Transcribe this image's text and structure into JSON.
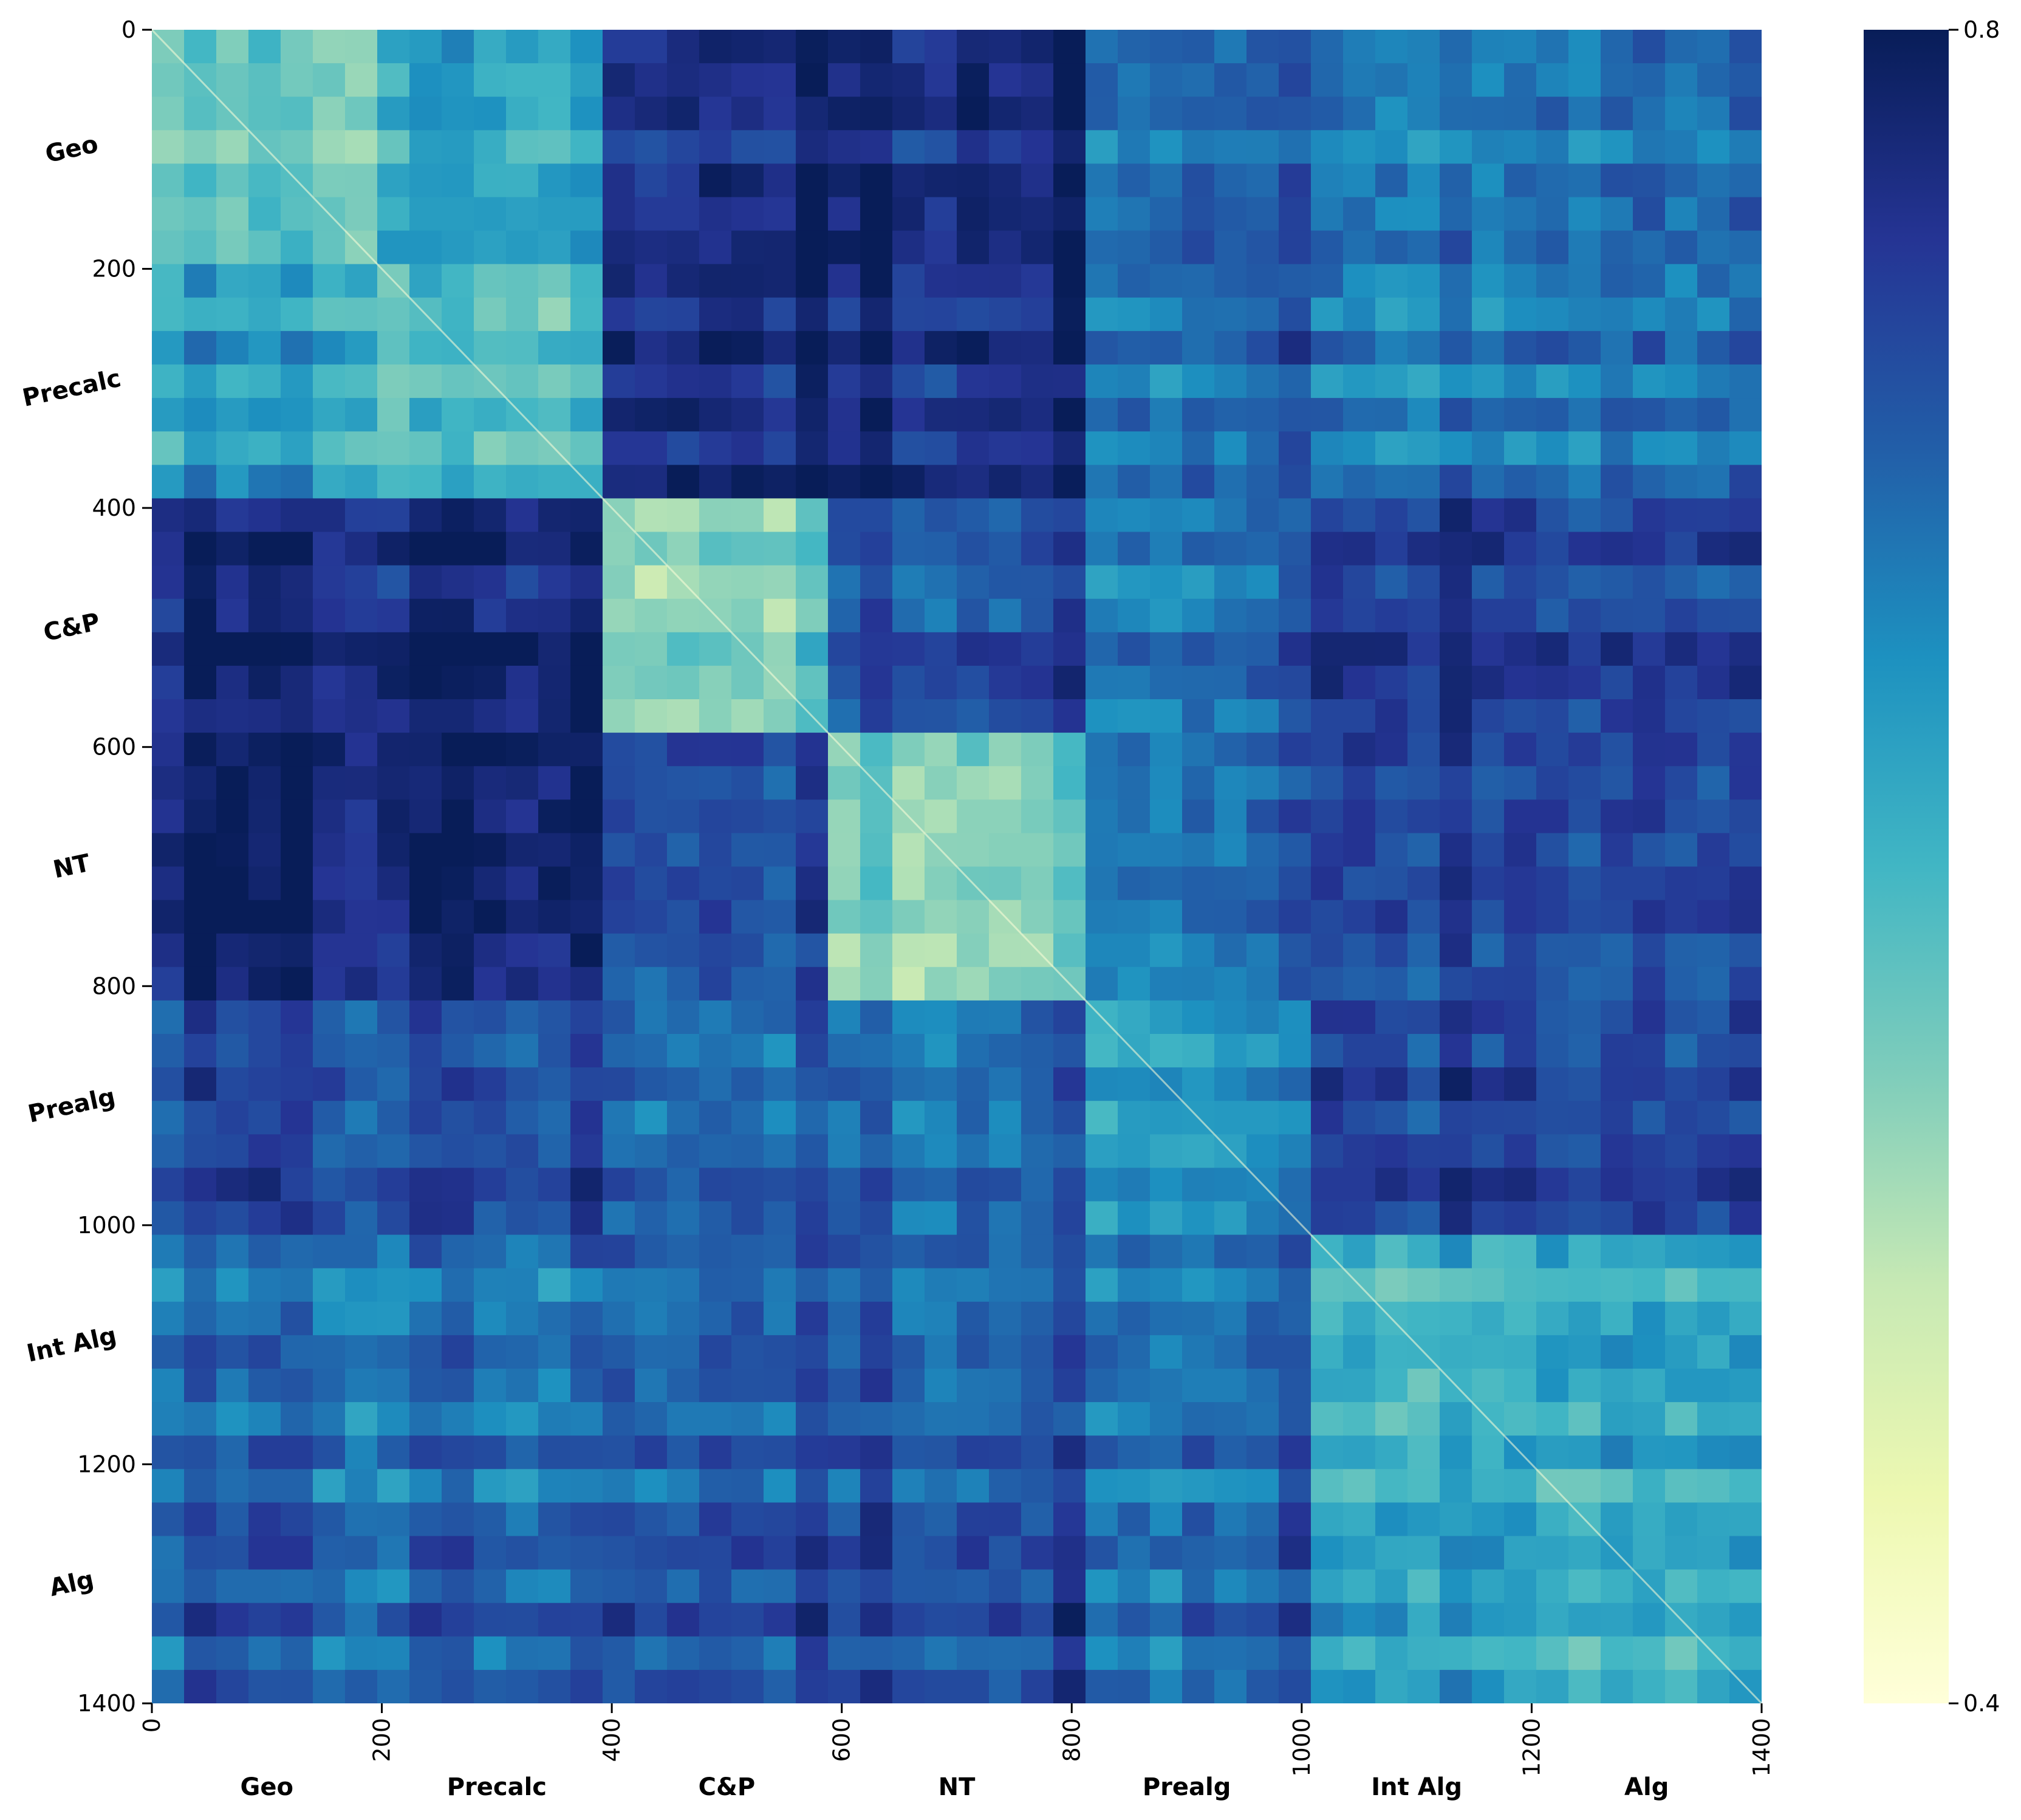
{
  "chart_data": {
    "type": "heatmap",
    "title": "",
    "xlabel": "",
    "ylabel": "",
    "n": 1400,
    "xlim": [
      0,
      1400
    ],
    "ylim": [
      1400,
      0
    ],
    "x_ticks": [
      0,
      200,
      400,
      600,
      800,
      1000,
      1200,
      1400
    ],
    "x_tick_labels": [
      "0",
      "200",
      "400",
      "600",
      "800",
      "1000",
      "1200",
      "1400"
    ],
    "y_ticks": [
      0,
      200,
      400,
      600,
      800,
      1000,
      1200,
      1400
    ],
    "y_tick_labels": [
      "0",
      "200",
      "400",
      "600",
      "800",
      "1000",
      "1200",
      "1400"
    ],
    "categories": [
      {
        "label": "Geo",
        "start": 0,
        "end": 200
      },
      {
        "label": "Precalc",
        "start": 200,
        "end": 400
      },
      {
        "label": "C&P",
        "start": 400,
        "end": 600
      },
      {
        "label": "NT",
        "start": 600,
        "end": 800
      },
      {
        "label": "Prealg",
        "start": 800,
        "end": 1000
      },
      {
        "label": "Int Alg",
        "start": 1000,
        "end": 1200
      },
      {
        "label": "Alg",
        "start": 1200,
        "end": 1400
      }
    ],
    "block_mean_values": [
      [
        0.55,
        0.62,
        0.76,
        0.77,
        0.7,
        0.66,
        0.67
      ],
      [
        0.62,
        0.58,
        0.77,
        0.77,
        0.7,
        0.66,
        0.67
      ],
      [
        0.76,
        0.77,
        0.55,
        0.72,
        0.69,
        0.74,
        0.72
      ],
      [
        0.77,
        0.77,
        0.72,
        0.55,
        0.69,
        0.72,
        0.71
      ],
      [
        0.72,
        0.72,
        0.7,
        0.7,
        0.66,
        0.73,
        0.72
      ],
      [
        0.68,
        0.68,
        0.71,
        0.71,
        0.7,
        0.6,
        0.62
      ],
      [
        0.69,
        0.69,
        0.72,
        0.72,
        0.7,
        0.62,
        0.6
      ]
    ],
    "diagonal_value": 0.4,
    "colorbar": {
      "colormap": "YlGnBu",
      "min": 0.4,
      "max": 0.8,
      "tick_labels": [
        "0.8",
        "0.4"
      ],
      "colors": [
        "#ffffd9",
        "#edf8b1",
        "#c7e9b4",
        "#7fcdbb",
        "#41b6c4",
        "#1d91c0",
        "#225ea8",
        "#253494",
        "#081d58"
      ]
    }
  }
}
